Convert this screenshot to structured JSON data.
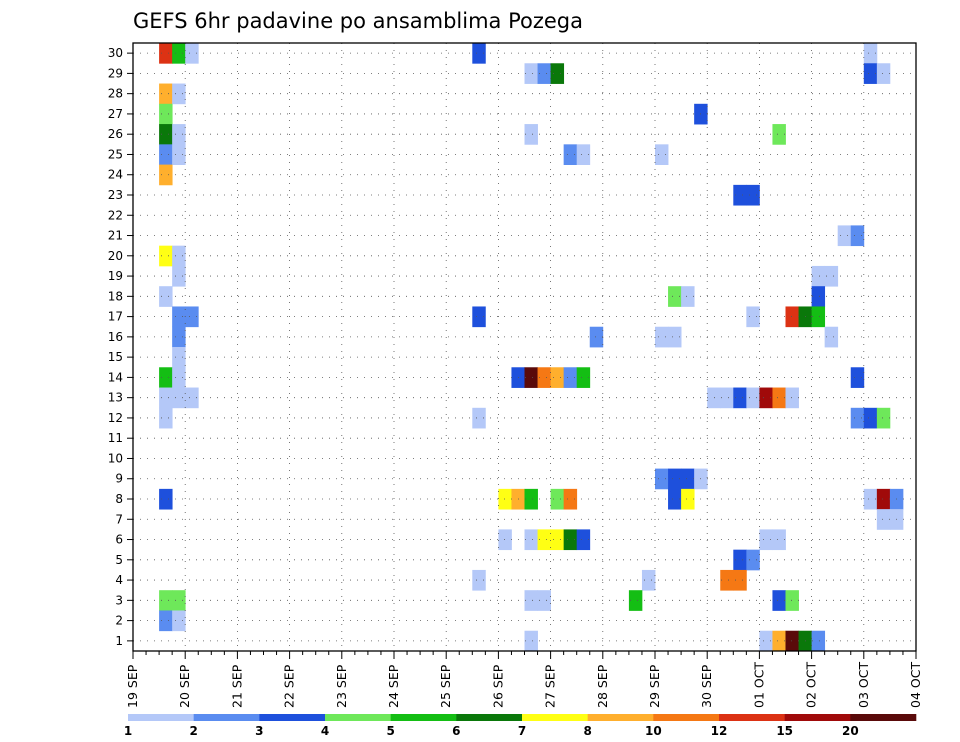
{
  "chart_data": {
    "type": "heatmap",
    "title": "GEFS 6hr padavine po ansamblima Pozega",
    "xlabel": "",
    "ylabel": "",
    "x_ticks": [
      "19 SEP",
      "20 SEP",
      "21 SEP",
      "22 SEP",
      "23 SEP",
      "24 SEP",
      "25 SEP",
      "26 SEP",
      "27 SEP",
      "28 SEP",
      "29 SEP",
      "30 SEP",
      "01 OCT",
      "02 OCT",
      "03 OCT",
      "04 OCT"
    ],
    "y_ticks": [
      "1",
      "2",
      "3",
      "4",
      "5",
      "6",
      "7",
      "8",
      "9",
      "10",
      "11",
      "12",
      "13",
      "14",
      "15",
      "16",
      "17",
      "18",
      "19",
      "20",
      "21",
      "22",
      "23",
      "24",
      "25",
      "26",
      "27",
      "28",
      "29",
      "30"
    ],
    "xlim": [
      0,
      60
    ],
    "ylim": [
      0.5,
      30.5
    ],
    "x_unit": "6-hour steps from 19 SEP 00Z",
    "grid": true,
    "colorbar": {
      "boundaries": [
        "1",
        "2",
        "3",
        "4",
        "5",
        "6",
        "7",
        "8",
        "10",
        "12",
        "15",
        "20"
      ],
      "colors": [
        "#b4c8f8",
        "#5a8cf0",
        "#1e50dc",
        "#6ee85a",
        "#14be14",
        "#0a780a",
        "#ffff14",
        "#ffaf2d",
        "#f57814",
        "#dc3214",
        "#a00a0a",
        "#5a0a0a"
      ]
    },
    "cells": [
      [
        2,
        30,
        9
      ],
      [
        3,
        30,
        4
      ],
      [
        4,
        30,
        0
      ],
      [
        26,
        30,
        2
      ],
      [
        56,
        30,
        0
      ],
      [
        30,
        29,
        0
      ],
      [
        31,
        29,
        1
      ],
      [
        32,
        29,
        5
      ],
      [
        56,
        29,
        2
      ],
      [
        57,
        29,
        0
      ],
      [
        2,
        28,
        7
      ],
      [
        3,
        28,
        0
      ],
      [
        2,
        27,
        3
      ],
      [
        43,
        27,
        2
      ],
      [
        2,
        26,
        5
      ],
      [
        3,
        26,
        0
      ],
      [
        30,
        26,
        0
      ],
      [
        49,
        26,
        3
      ],
      [
        2,
        25,
        1
      ],
      [
        3,
        25,
        0
      ],
      [
        33,
        25,
        1
      ],
      [
        34,
        25,
        0
      ],
      [
        40,
        25,
        0
      ],
      [
        2,
        24,
        7
      ],
      [
        46,
        23,
        2
      ],
      [
        47,
        23,
        2
      ],
      [
        54,
        21,
        0
      ],
      [
        55,
        21,
        1
      ],
      [
        2,
        20,
        6
      ],
      [
        3,
        20,
        0
      ],
      [
        3,
        19,
        0
      ],
      [
        52,
        19,
        0
      ],
      [
        53,
        19,
        0
      ],
      [
        2,
        18,
        0
      ],
      [
        41,
        18,
        3
      ],
      [
        42,
        18,
        0
      ],
      [
        52,
        18,
        2
      ],
      [
        3,
        17,
        1
      ],
      [
        4,
        17,
        1
      ],
      [
        26,
        17,
        2
      ],
      [
        47,
        17,
        0
      ],
      [
        50,
        17,
        9
      ],
      [
        51,
        17,
        5
      ],
      [
        52,
        17,
        4
      ],
      [
        3,
        16,
        1
      ],
      [
        35,
        16,
        1
      ],
      [
        40,
        16,
        0
      ],
      [
        41,
        16,
        0
      ],
      [
        53,
        16,
        0
      ],
      [
        3,
        15,
        0
      ],
      [
        2,
        14,
        4
      ],
      [
        3,
        14,
        0
      ],
      [
        29,
        14,
        2
      ],
      [
        30,
        14,
        11
      ],
      [
        31,
        14,
        8
      ],
      [
        32,
        14,
        7
      ],
      [
        33,
        14,
        1
      ],
      [
        34,
        14,
        4
      ],
      [
        55,
        14,
        2
      ],
      [
        2,
        13,
        0
      ],
      [
        3,
        13,
        0
      ],
      [
        4,
        13,
        0
      ],
      [
        44,
        13,
        0
      ],
      [
        45,
        13,
        0
      ],
      [
        46,
        13,
        2
      ],
      [
        47,
        13,
        0
      ],
      [
        48,
        13,
        10
      ],
      [
        49,
        13,
        8
      ],
      [
        50,
        13,
        0
      ],
      [
        2,
        12,
        0
      ],
      [
        26,
        12,
        0
      ],
      [
        55,
        12,
        1
      ],
      [
        56,
        12,
        2
      ],
      [
        57,
        12,
        3
      ],
      [
        40,
        9,
        1
      ],
      [
        41,
        9,
        2
      ],
      [
        42,
        9,
        2
      ],
      [
        43,
        9,
        0
      ],
      [
        2,
        8,
        2
      ],
      [
        28,
        8,
        6
      ],
      [
        29,
        8,
        7
      ],
      [
        30,
        8,
        4
      ],
      [
        32,
        8,
        3
      ],
      [
        33,
        8,
        8
      ],
      [
        41,
        8,
        2
      ],
      [
        42,
        8,
        6
      ],
      [
        56,
        8,
        0
      ],
      [
        57,
        8,
        10
      ],
      [
        58,
        8,
        1
      ],
      [
        57,
        7,
        0
      ],
      [
        58,
        7,
        0
      ],
      [
        28,
        6,
        0
      ],
      [
        30,
        6,
        0
      ],
      [
        31,
        6,
        6
      ],
      [
        32,
        6,
        6
      ],
      [
        33,
        6,
        5
      ],
      [
        34,
        6,
        2
      ],
      [
        48,
        6,
        0
      ],
      [
        49,
        6,
        0
      ],
      [
        46,
        5,
        2
      ],
      [
        47,
        5,
        1
      ],
      [
        26,
        4,
        0
      ],
      [
        39,
        4,
        0
      ],
      [
        45,
        4,
        8
      ],
      [
        46,
        4,
        8
      ],
      [
        2,
        3,
        3
      ],
      [
        3,
        3,
        3
      ],
      [
        30,
        3,
        0
      ],
      [
        31,
        3,
        0
      ],
      [
        38,
        3,
        4
      ],
      [
        49,
        3,
        2
      ],
      [
        50,
        3,
        3
      ],
      [
        2,
        2,
        1
      ],
      [
        3,
        2,
        0
      ],
      [
        30,
        1,
        0
      ],
      [
        48,
        1,
        0
      ],
      [
        49,
        1,
        7
      ],
      [
        50,
        1,
        11
      ],
      [
        51,
        1,
        5
      ],
      [
        52,
        1,
        1
      ]
    ]
  }
}
